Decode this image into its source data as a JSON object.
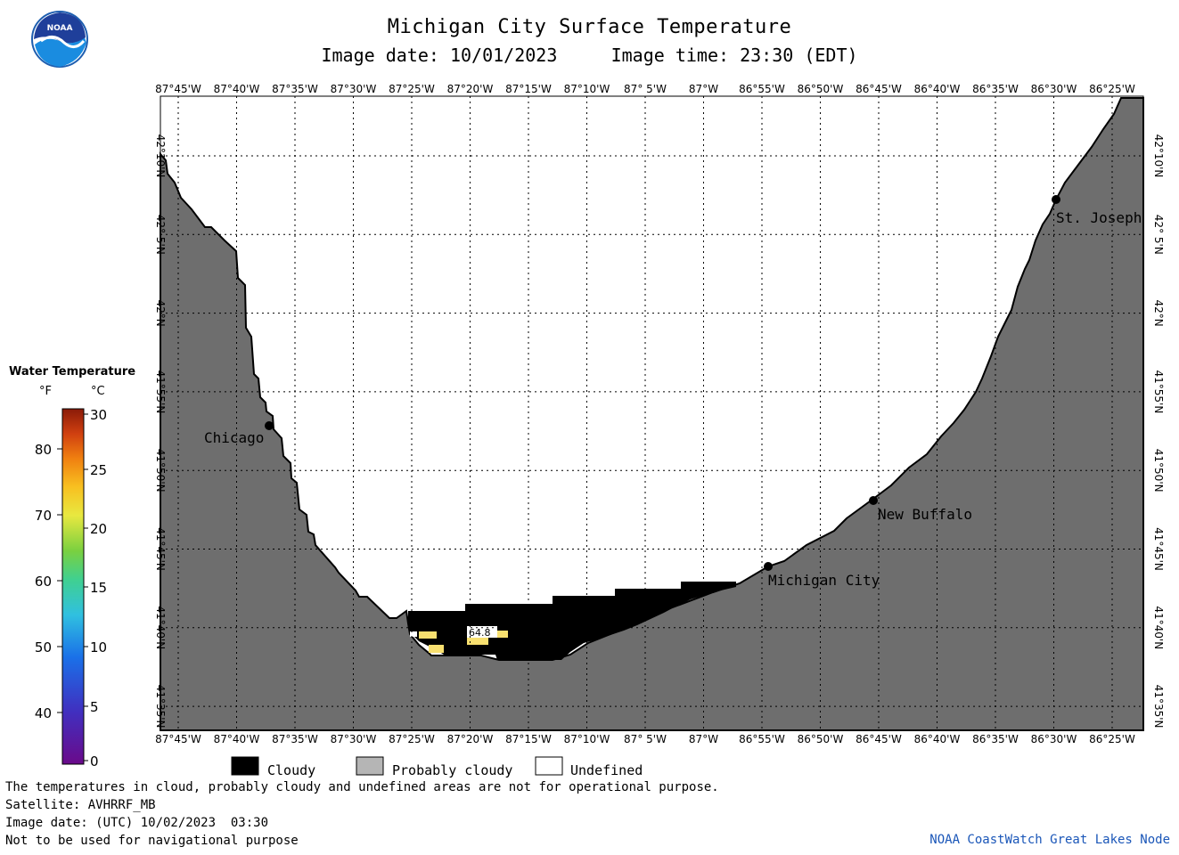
{
  "header": {
    "title": "Michigan City Surface Temperature",
    "subtitle": "Image date: 10/01/2023     Image time: 23:30 (EDT)",
    "logo_text": "NOAA"
  },
  "map": {
    "lon_labels": [
      "87°45'W",
      "87°40'W",
      "87°35'W",
      "87°30'W",
      "87°25'W",
      "87°20'W",
      "87°15'W",
      "87°10'W",
      "87° 5'W",
      "87°W",
      "86°55'W",
      "86°50'W",
      "86°45'W",
      "86°40'W",
      "86°35'W",
      "86°30'W",
      "86°25'W"
    ],
    "lat_labels": [
      "42°10'N",
      "42° 5'N",
      "42°N",
      "41°55'N",
      "41°50'N",
      "41°45'N",
      "41°40'N",
      "41°35'N"
    ],
    "land_color": "#6e6e6e",
    "cloud_color": "#000000",
    "cities": [
      {
        "name": "Chicago"
      },
      {
        "name": "Michigan City"
      },
      {
        "name": "New Buffalo"
      },
      {
        "name": "St. Joseph"
      }
    ],
    "temp_reading": "64.8"
  },
  "legend": {
    "title": "Water Temperature",
    "unit_f": "°F",
    "unit_c": "°C",
    "f_ticks": [
      "80",
      "70",
      "60",
      "50",
      "40"
    ],
    "c_ticks": [
      "30",
      "25",
      "20",
      "15",
      "10",
      "5",
      "0"
    ],
    "colors": [
      "#6a0a8a",
      "#4030c0",
      "#1a70e8",
      "#30c0e0",
      "#40d090",
      "#7ad040",
      "#e8e840",
      "#f8c020",
      "#f08010",
      "#d04010",
      "#8a1a08"
    ]
  },
  "key": {
    "cloudy": "Cloudy",
    "probably_cloudy": "Probably cloudy",
    "undefined": "Undefined"
  },
  "footer": {
    "line1": "The temperatures in cloud, probably cloudy and undefined areas are not for operational purpose.",
    "line2": "Satellite: AVHRRF_MB",
    "line3": "Image date: (UTC) 10/02/2023  03:30",
    "line4": "Not to be used for navigational purpose",
    "credit": "NOAA CoastWatch Great Lakes Node"
  }
}
